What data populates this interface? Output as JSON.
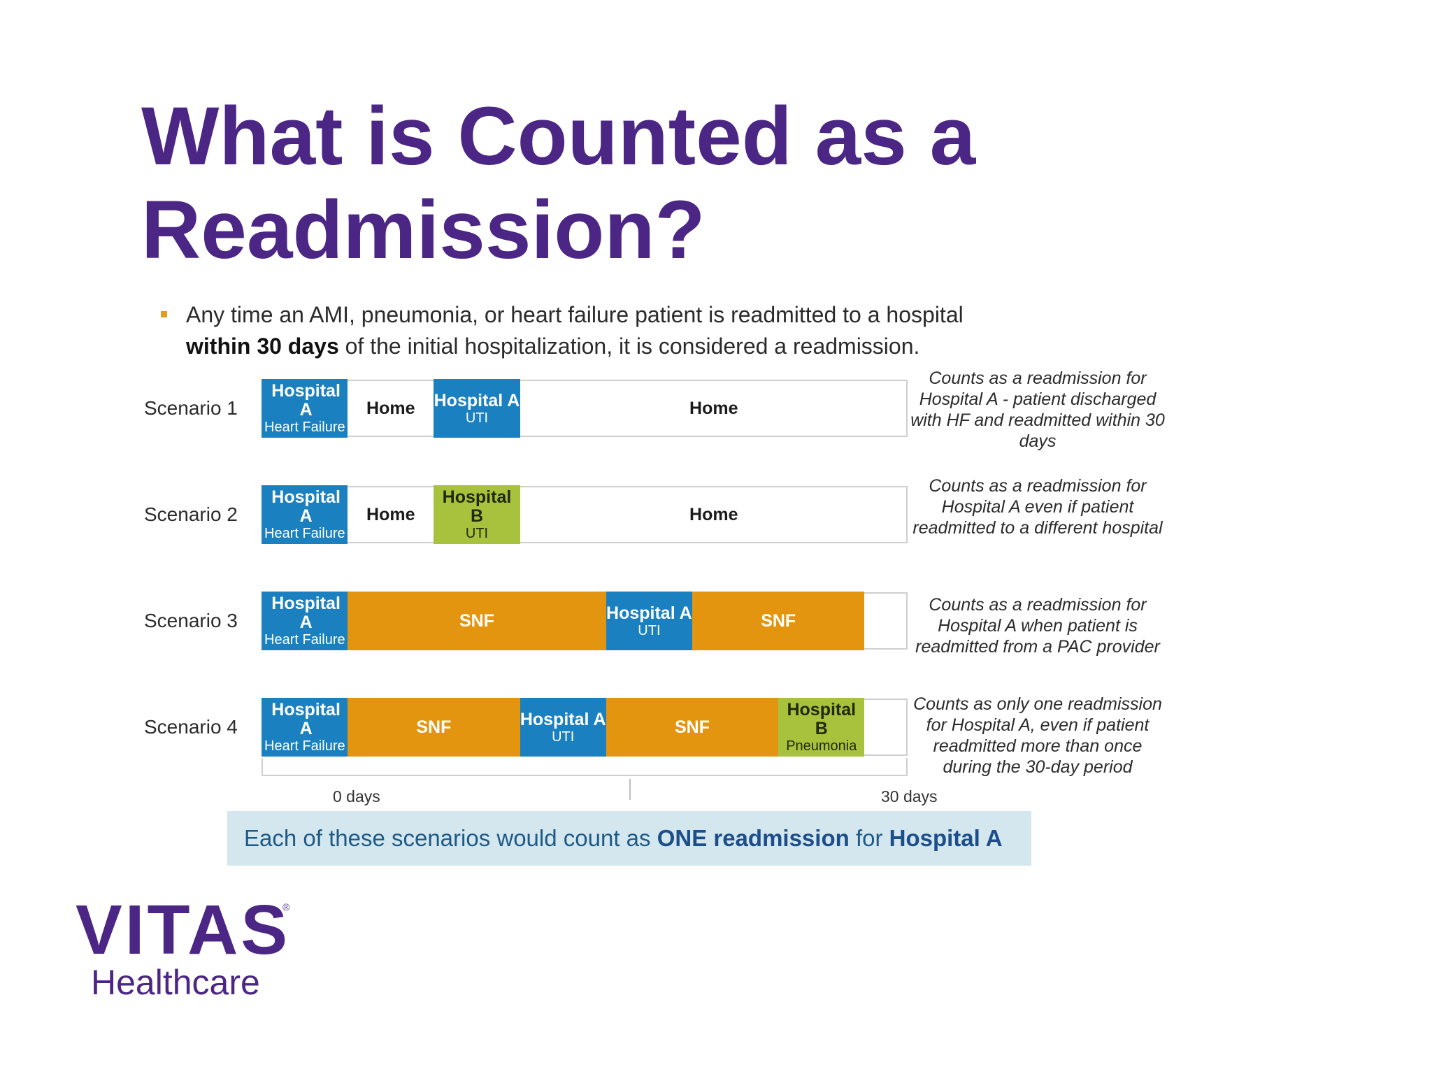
{
  "title": {
    "line1": "What is Counted as a",
    "line2": "Readmission?"
  },
  "bullet": {
    "text_before": "Any time an AMI, pneumonia, or heart failure patient is readmitted to a hospital",
    "bold": "within 30 days",
    "text_after": "of the initial hospitalization, it is considered a readmission."
  },
  "colors": {
    "hospital_a": "#1a80bf",
    "hospital_b": "#a9c23d",
    "snf": "#e3950f",
    "title": "#4b2685"
  },
  "scenarios": [
    {
      "label": "Scenario 1",
      "segments": [
        {
          "main": "Hospital A",
          "sub": "Heart Failure",
          "kind": "hospA",
          "start": 0,
          "end": 4
        },
        {
          "main": "Home",
          "sub": "",
          "kind": "home",
          "start": 4,
          "end": 8
        },
        {
          "main": "Hospital A",
          "sub": "UTI",
          "kind": "hospA",
          "start": 8,
          "end": 12
        },
        {
          "main": "Home",
          "sub": "",
          "kind": "home",
          "start": 12,
          "end": 30
        }
      ],
      "note": "Counts as a readmission for Hospital A - patient discharged with HF and readmitted within 30 days"
    },
    {
      "label": "Scenario 2",
      "segments": [
        {
          "main": "Hospital A",
          "sub": "Heart Failure",
          "kind": "hospA",
          "start": 0,
          "end": 4
        },
        {
          "main": "Home",
          "sub": "",
          "kind": "home",
          "start": 4,
          "end": 8
        },
        {
          "main": "Hospital B",
          "sub": "UTI",
          "kind": "hospB",
          "start": 8,
          "end": 12
        },
        {
          "main": "Home",
          "sub": "",
          "kind": "home",
          "start": 12,
          "end": 30
        }
      ],
      "note": "Counts as a readmission for Hospital A even if patient readmitted to a different hospital"
    },
    {
      "label": "Scenario 3",
      "segments": [
        {
          "main": "Hospital A",
          "sub": "Heart Failure",
          "kind": "hospA",
          "start": 0,
          "end": 4
        },
        {
          "main": "SNF",
          "sub": "",
          "kind": "snf",
          "start": 4,
          "end": 16
        },
        {
          "main": "Hospital A",
          "sub": "UTI",
          "kind": "hospA",
          "start": 16,
          "end": 20
        },
        {
          "main": "SNF",
          "sub": "",
          "kind": "snf",
          "start": 20,
          "end": 28
        }
      ],
      "note": "Counts as a readmission for Hospital A when patient is readmitted from a PAC provider"
    },
    {
      "label": "Scenario 4",
      "segments": [
        {
          "main": "Hospital A",
          "sub": "Heart Failure",
          "kind": "hospA",
          "start": 0,
          "end": 4
        },
        {
          "main": "SNF",
          "sub": "",
          "kind": "snf",
          "start": 4,
          "end": 12
        },
        {
          "main": "Hospital A",
          "sub": "UTI",
          "kind": "hospA",
          "start": 12,
          "end": 16
        },
        {
          "main": "SNF",
          "sub": "",
          "kind": "snf",
          "start": 16,
          "end": 24
        },
        {
          "main": "Hospital B",
          "sub": "Pneumonia",
          "kind": "hospB",
          "start": 24,
          "end": 28
        }
      ],
      "note": "Counts as only one readmission for Hospital A, even if patient readmitted more than once during the 30-day period"
    }
  ],
  "axis": {
    "start_label": "0 days",
    "end_label": "30 days"
  },
  "summary": {
    "text1": "Each of these scenarios would count as",
    "bold1": "ONE readmission",
    "text2": "for",
    "bold2": "Hospital A"
  },
  "logo": {
    "name": "VITAS",
    "registered": "®",
    "sub": "Healthcare"
  }
}
